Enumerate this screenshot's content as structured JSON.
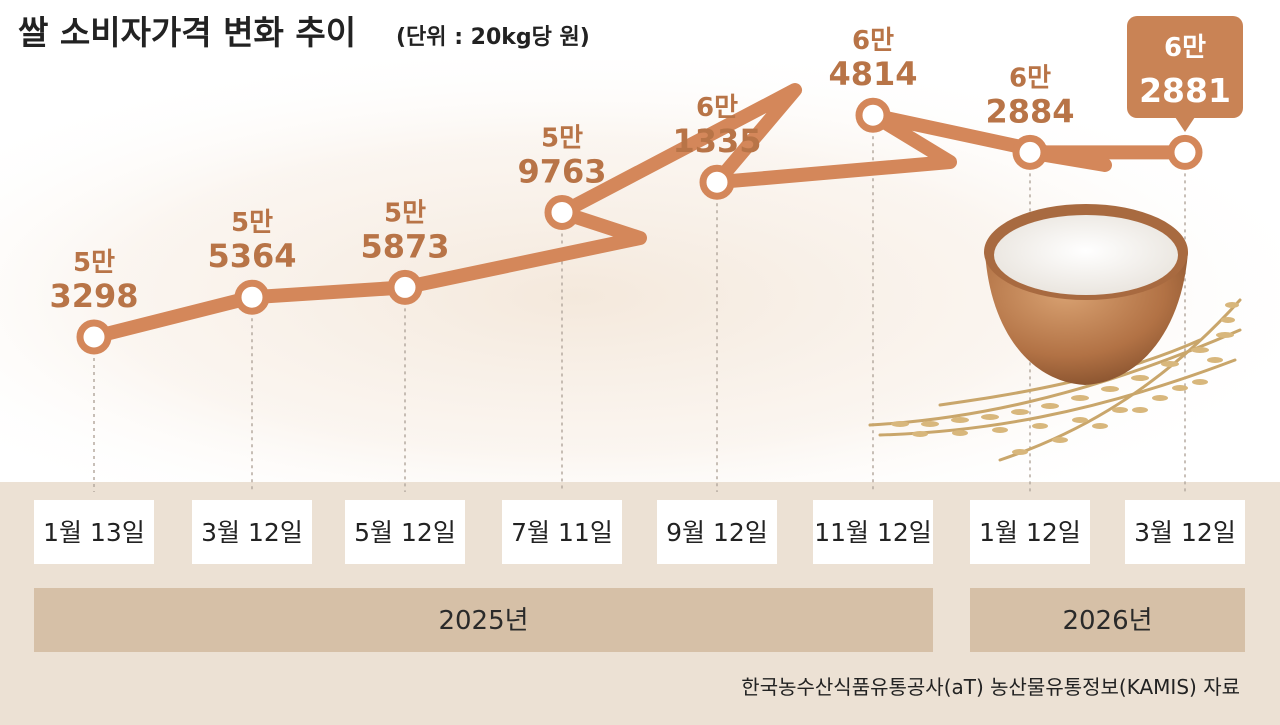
{
  "title": "쌀 소비자가격 변화 추이",
  "unit_note": "(단위 : 20kg당 원)",
  "source": "한국농수산식품유통공사(aT) 농산물유통정보(KAMIS) 자료",
  "colors": {
    "line": "#d4875a",
    "label": "#b87447",
    "callout": "#c98355",
    "band": "#ece1d4",
    "date_box": "#ffffff",
    "year_bar": "#d6c0a7"
  },
  "chart_data": {
    "type": "line",
    "title": "쌀 소비자가격 변화 추이",
    "unit": "(단위 : 20kg당 원)",
    "categories": [
      "1월 13일",
      "3월 12일",
      "5월 12일",
      "7월 11일",
      "9월 12일",
      "11월 12일",
      "1월 12일",
      "3월 12일"
    ],
    "values": [
      53298,
      55364,
      55873,
      59763,
      61335,
      64814,
      62884,
      62881
    ],
    "label_top": [
      "5만",
      "5만",
      "5만",
      "5만",
      "6만",
      "6만",
      "6만",
      "6만"
    ],
    "label_bottom": [
      "3298",
      "5364",
      "5873",
      "9763",
      "1335",
      "4814",
      "2884",
      "2881"
    ],
    "years": [
      {
        "label": "2025년",
        "from": 0,
        "to": 5
      },
      {
        "label": "2026년",
        "from": 6,
        "to": 7
      }
    ],
    "highlight_index": 7,
    "legend": "none",
    "grid": false
  }
}
